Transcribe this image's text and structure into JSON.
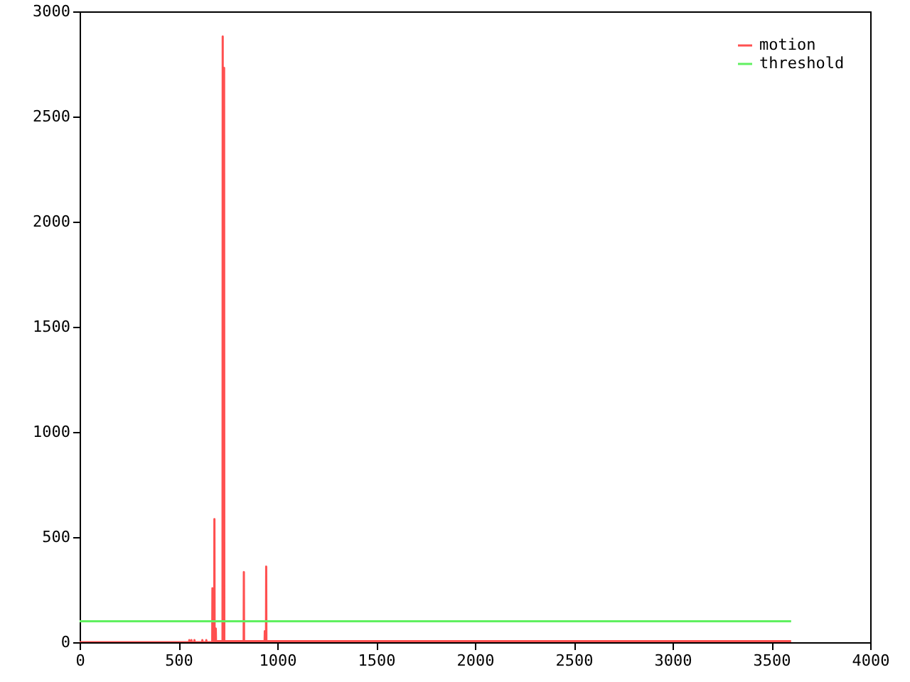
{
  "chart_data": {
    "type": "line",
    "xlim": [
      0,
      4000
    ],
    "ylim": [
      0,
      3000
    ],
    "xticks": [
      0,
      500,
      1000,
      1500,
      2000,
      2500,
      3000,
      3500,
      4000
    ],
    "yticks": [
      0,
      500,
      1000,
      1500,
      2000,
      2500,
      3000
    ],
    "grid": false,
    "legend": "top right",
    "line_style": "solid",
    "marker": "none",
    "series": [
      {
        "name": "motion",
        "color": "#ff5050",
        "x": [
          0,
          554,
          555,
          556,
          565,
          566,
          567,
          580,
          581,
          582,
          620,
          621,
          622,
          640,
          641,
          642,
          670,
          671,
          672,
          673,
          681,
          682,
          683,
          688,
          689,
          690,
          700,
          723,
          724,
          725,
          730,
          731,
          732,
          830,
          831,
          832,
          936,
          937,
          938,
          943,
          944,
          945,
          3600
        ],
        "values": [
          0,
          0,
          10,
          0,
          0,
          10,
          0,
          0,
          10,
          0,
          0,
          10,
          0,
          0,
          10,
          0,
          0,
          5,
          257,
          5,
          5,
          585,
          5,
          5,
          65,
          5,
          5,
          5,
          2881,
          5,
          5,
          2731,
          5,
          5,
          334,
          5,
          5,
          52,
          5,
          5,
          360,
          5,
          5
        ]
      },
      {
        "name": "threshold",
        "color": "#60f060",
        "x": [
          0,
          3600
        ],
        "values": [
          100,
          100
        ]
      }
    ]
  }
}
